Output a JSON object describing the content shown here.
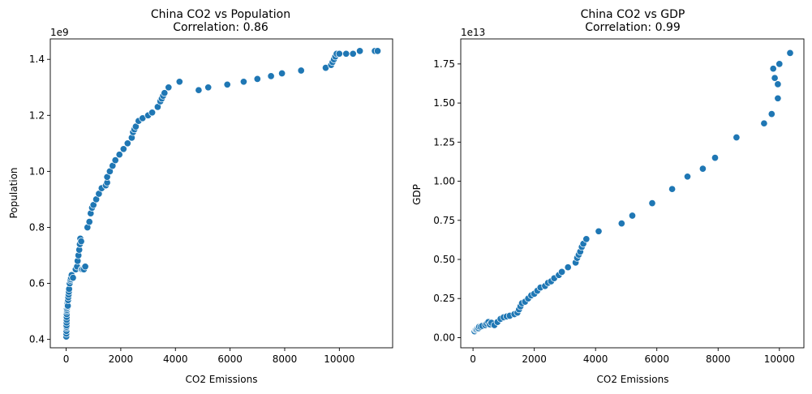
{
  "chart_data": [
    {
      "type": "scatter",
      "title": "China CO2 vs Population",
      "subtitle": "Correlation: 0.86",
      "xlabel": "CO2 Emissions",
      "ylabel": "Population",
      "y_offset_label": "1e9",
      "xlim": [
        -580,
        11950
      ],
      "ylim": [
        0.37,
        1.473
      ],
      "xticks": [
        0,
        2000,
        4000,
        6000,
        8000,
        10000
      ],
      "xtick_labels": [
        "0",
        "2000",
        "4000",
        "6000",
        "8000",
        "10000"
      ],
      "yticks": [
        0.4,
        0.6,
        0.8,
        1.0,
        1.2,
        1.4
      ],
      "ytick_labels": [
        "0.4",
        "0.6",
        "0.8",
        "1.0",
        "1.2",
        "1.4"
      ],
      "grid": false,
      "marker_color": "#1f77b4",
      "series": [
        {
          "x": [
            5,
            8,
            10,
            12,
            15,
            15,
            18,
            20,
            20,
            22,
            25,
            28,
            30,
            35,
            40,
            45,
            50,
            55,
            60,
            70,
            80,
            90,
            100,
            110,
            130,
            150,
            160,
            180,
            200,
            250,
            350,
            400,
            420,
            450,
            480,
            500,
            520,
            550,
            560,
            600,
            650,
            700,
            780,
            850,
            900,
            950,
            1000,
            1100,
            1200,
            1300,
            1450,
            1500,
            1500,
            1600,
            1700,
            1800,
            1950,
            2100,
            2250,
            2400,
            2450,
            2500,
            2550,
            2650,
            2800,
            3000,
            3150,
            3350,
            3450,
            3500,
            3550,
            3600,
            3750,
            4150,
            4850,
            5200,
            5900,
            6500,
            7000,
            7500,
            7900,
            8600,
            9500,
            9700,
            9750,
            9800,
            9850,
            9900,
            10000,
            10250,
            10500,
            10750,
            11300,
            11400
          ],
          "y": [
            0.41,
            0.42,
            0.43,
            0.44,
            0.445,
            0.45,
            0.46,
            0.47,
            0.48,
            0.49,
            0.5,
            0.505,
            0.51,
            0.52,
            0.53,
            0.525,
            0.515,
            0.52,
            0.52,
            0.54,
            0.55,
            0.56,
            0.57,
            0.58,
            0.6,
            0.61,
            0.615,
            0.62,
            0.63,
            0.62,
            0.65,
            0.66,
            0.68,
            0.7,
            0.72,
            0.74,
            0.76,
            0.75,
            0.65,
            0.65,
            0.65,
            0.66,
            0.8,
            0.82,
            0.85,
            0.87,
            0.88,
            0.9,
            0.92,
            0.94,
            0.95,
            0.96,
            0.98,
            1.0,
            1.02,
            1.04,
            1.06,
            1.08,
            1.1,
            1.12,
            1.14,
            1.15,
            1.16,
            1.18,
            1.19,
            1.2,
            1.21,
            1.23,
            1.25,
            1.26,
            1.27,
            1.28,
            1.3,
            1.32,
            1.29,
            1.3,
            1.31,
            1.32,
            1.33,
            1.34,
            1.35,
            1.36,
            1.37,
            1.38,
            1.39,
            1.4,
            1.41,
            1.42,
            1.42,
            1.42,
            1.42,
            1.43,
            1.43,
            1.43
          ]
        }
      ]
    },
    {
      "type": "scatter",
      "title": "China CO2 vs GDP",
      "subtitle": "Correlation: 0.99",
      "xlabel": "CO2 Emissions",
      "ylabel": "GDP",
      "y_offset_label": "1e13",
      "xlim": [
        -400,
        10800
      ],
      "ylim": [
        -0.065,
        1.91
      ],
      "xticks": [
        0,
        2000,
        4000,
        6000,
        8000,
        10000
      ],
      "xtick_labels": [
        "0",
        "2000",
        "4000",
        "6000",
        "8000",
        "10000"
      ],
      "yticks": [
        0.0,
        0.25,
        0.5,
        0.75,
        1.0,
        1.25,
        1.5,
        1.75
      ],
      "ytick_labels": [
        "0.00",
        "0.25",
        "0.50",
        "0.75",
        "1.00",
        "1.25",
        "1.50",
        "1.75"
      ],
      "grid": false,
      "marker_color": "#1f77b4",
      "series": [
        {
          "x": [
            50,
            80,
            100,
            120,
            150,
            180,
            200,
            250,
            300,
            400,
            450,
            500,
            550,
            600,
            700,
            800,
            900,
            1000,
            1100,
            1200,
            1350,
            1450,
            1500,
            1550,
            1600,
            1700,
            1800,
            1900,
            2000,
            2100,
            2200,
            2350,
            2450,
            2550,
            2650,
            2800,
            2900,
            3100,
            3350,
            3400,
            3450,
            3500,
            3550,
            3600,
            3700,
            4100,
            4850,
            5200,
            5850,
            6500,
            7000,
            7500,
            7900,
            8600,
            9500,
            9750,
            9800,
            9850,
            9950,
            9950,
            10000,
            10350
          ],
          "y": [
            0.04,
            0.05,
            0.05,
            0.055,
            0.06,
            0.06,
            0.07,
            0.07,
            0.075,
            0.08,
            0.09,
            0.1,
            0.085,
            0.095,
            0.08,
            0.1,
            0.12,
            0.13,
            0.135,
            0.14,
            0.15,
            0.16,
            0.18,
            0.2,
            0.22,
            0.23,
            0.25,
            0.27,
            0.28,
            0.3,
            0.32,
            0.33,
            0.35,
            0.36,
            0.38,
            0.4,
            0.42,
            0.45,
            0.48,
            0.51,
            0.53,
            0.55,
            0.58,
            0.6,
            0.63,
            0.68,
            0.73,
            0.78,
            0.86,
            0.95,
            1.03,
            1.08,
            1.15,
            1.28,
            1.37,
            1.43,
            1.72,
            1.66,
            1.53,
            1.62,
            1.75,
            1.82
          ]
        }
      ]
    }
  ]
}
